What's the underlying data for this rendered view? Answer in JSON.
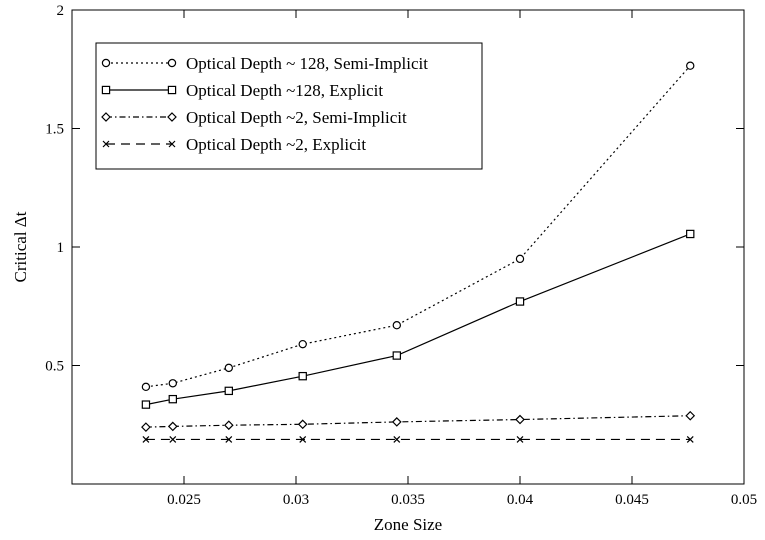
{
  "chart_data": {
    "type": "line",
    "xlabel": "Zone Size",
    "ylabel": "Critical Δt",
    "xlim": [
      0.02,
      0.05
    ],
    "ylim": [
      0,
      2
    ],
    "xticks": [
      0.025,
      0.03,
      0.035,
      0.04,
      0.045,
      0.05
    ],
    "xtick_labels": [
      "0.025",
      "0.03",
      "0.035",
      "0.04",
      "0.045",
      "0.05"
    ],
    "yticks": [
      0.5,
      1,
      1.5,
      2
    ],
    "ytick_labels": [
      "0.5",
      "1",
      "1.5",
      "2"
    ],
    "grid": false,
    "legend_position": "top-left",
    "series": [
      {
        "name": "Optical Depth ~ 128, Semi-Implicit",
        "marker": "circle",
        "line_style": "dotted",
        "x": [
          0.0233,
          0.0245,
          0.027,
          0.0303,
          0.0345,
          0.04,
          0.0476
        ],
        "y": [
          0.41,
          0.425,
          0.49,
          0.59,
          0.67,
          0.95,
          1.765
        ]
      },
      {
        "name": "Optical Depth ~128, Explicit",
        "marker": "square",
        "line_style": "solid",
        "x": [
          0.0233,
          0.0245,
          0.027,
          0.0303,
          0.0345,
          0.04,
          0.0476
        ],
        "y": [
          0.335,
          0.358,
          0.393,
          0.455,
          0.542,
          0.77,
          1.055
        ]
      },
      {
        "name": "Optical Depth ~2, Semi-Implicit",
        "marker": "diamond",
        "line_style": "dash-dot",
        "x": [
          0.0233,
          0.0245,
          0.027,
          0.0303,
          0.0345,
          0.04,
          0.0476
        ],
        "y": [
          0.24,
          0.243,
          0.248,
          0.252,
          0.262,
          0.272,
          0.288
        ]
      },
      {
        "name": "Optical Depth ~2, Explicit",
        "marker": "x",
        "line_style": "dashed",
        "x": [
          0.0233,
          0.0245,
          0.027,
          0.0303,
          0.0345,
          0.04,
          0.0476
        ],
        "y": [
          0.188,
          0.188,
          0.188,
          0.188,
          0.188,
          0.188,
          0.188
        ]
      }
    ]
  }
}
